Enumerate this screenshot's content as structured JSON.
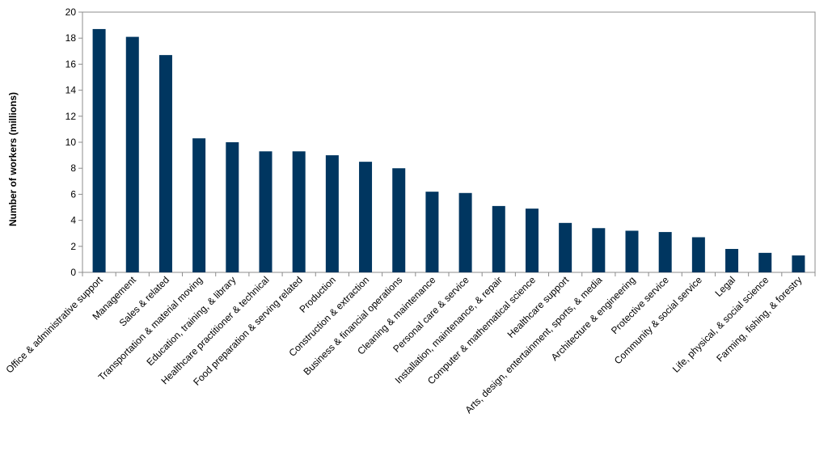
{
  "chart_data": {
    "type": "bar",
    "title": "",
    "xlabel": "",
    "ylabel": "Number of workers (millions)",
    "ylim": [
      0,
      20
    ],
    "yticks": [
      "0",
      "2",
      "4",
      "6",
      "8",
      "10",
      "12",
      "14",
      "16",
      "18",
      "20"
    ],
    "grid": false,
    "legend": "none",
    "bar_color": "#003660",
    "categories": [
      "Office & administrative support",
      "Management",
      "Sales & related",
      "Transportation & material moving",
      "Education, training, & library",
      "Healthcare practitioner & technical",
      "Food preparation & serving related",
      "Production",
      "Construction & extraction",
      "Business & financial operations",
      "Cleaning & maintenance",
      "Personal care & service",
      "Installation, maintenance, & repair",
      "Computer & mathematical science",
      "Healthcare support",
      "Arts, design, entertainment, sports, & media",
      "Architecture & engineering",
      "Protective service",
      "Community & social service",
      "Legal",
      "Life, physical, & social science",
      "Farming, fishing, & forestry"
    ],
    "values": [
      18.7,
      18.1,
      16.7,
      10.3,
      10.0,
      9.3,
      9.3,
      9.0,
      8.5,
      8.0,
      6.2,
      6.1,
      5.1,
      4.9,
      3.8,
      3.4,
      3.2,
      3.1,
      2.7,
      1.8,
      1.5,
      1.3
    ]
  }
}
